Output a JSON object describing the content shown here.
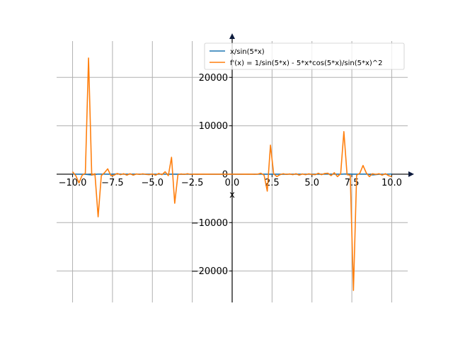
{
  "chart_data": {
    "type": "line",
    "xlabel": "x",
    "ylabel": "",
    "title": "",
    "xlim": [
      -11.0,
      11.0
    ],
    "ylim": [
      -26500,
      27500
    ],
    "grid": true,
    "legend_placement": "top-right",
    "x_ticks": [
      -10.0,
      -7.5,
      -5.0,
      -2.5,
      0.0,
      2.5,
      5.0,
      7.5,
      10.0
    ],
    "x_tick_labels": [
      "−10.0",
      "−7.5",
      "−5.0",
      "−2.5",
      "0.0",
      "2.5",
      "5.0",
      "7.5",
      "10.0"
    ],
    "y_ticks": [
      -20000,
      -10000,
      0,
      10000,
      20000
    ],
    "y_tick_labels": [
      "−20000",
      "−10000",
      "0",
      "10000",
      "20000"
    ],
    "series": [
      {
        "name": "x/sin(5*x)",
        "color": "#1f77b4",
        "x": [
          -10.0,
          -9.6,
          -9.2,
          -8.8,
          -8.4,
          -8.0,
          -7.6,
          -7.2,
          -6.8,
          -6.4,
          -6.0,
          -5.6,
          -5.2,
          -4.8,
          -4.4,
          -4.0,
          -3.6,
          -3.2,
          -2.8,
          -2.4,
          -2.0,
          -1.6,
          -1.2,
          -0.8,
          -0.4,
          0.0,
          0.4,
          0.8,
          1.2,
          1.6,
          2.0,
          2.4,
          2.8,
          3.2,
          3.6,
          4.0,
          4.4,
          4.8,
          5.2,
          5.6,
          6.0,
          6.4,
          6.8,
          7.2,
          7.6,
          8.0,
          8.4,
          8.8,
          9.2,
          9.6,
          10.0
        ],
        "values": [
          38,
          -12,
          -20,
          -150,
          25,
          12,
          -10,
          60,
          -9,
          15,
          8,
          -7,
          6,
          -12,
          5,
          -4,
          4,
          -25,
          3,
          -3,
          2,
          2,
          3,
          1,
          0.5,
          0.2,
          0.5,
          1,
          3,
          2,
          2,
          -3,
          3,
          -25,
          4,
          -4,
          5,
          -12,
          6,
          -7,
          8,
          15,
          -9,
          60,
          -10,
          12,
          25,
          -150,
          -20,
          -12,
          38
        ]
      },
      {
        "name": "f'(x) = 1/sin(5*x) - 5*x*cos(5*x)/sin(5*x)^2",
        "color": "#ff7f0e",
        "x": [
          -10.0,
          -9.8,
          -9.6,
          -9.4,
          -9.2,
          -9.0,
          -8.8,
          -8.6,
          -8.4,
          -8.2,
          -8.0,
          -7.8,
          -7.6,
          -7.4,
          -7.2,
          -7.0,
          -6.8,
          -6.6,
          -6.4,
          -6.2,
          -6.0,
          -5.8,
          -5.6,
          -5.4,
          -5.2,
          -5.0,
          -4.8,
          -4.6,
          -4.4,
          -4.2,
          -4.0,
          -3.8,
          -3.6,
          -3.4,
          -3.2,
          -3.0,
          -2.8,
          -2.6,
          -2.4,
          -2.2,
          -2.0,
          -1.8,
          -1.6,
          -1.4,
          -1.2,
          -1.0,
          -0.8,
          -0.6,
          -0.4,
          -0.2,
          0.0,
          0.2,
          0.4,
          0.6,
          0.8,
          1.0,
          1.2,
          1.4,
          1.6,
          1.8,
          2.0,
          2.2,
          2.4,
          2.6,
          2.8,
          3.0,
          3.2,
          3.4,
          3.6,
          3.8,
          4.0,
          4.2,
          4.4,
          4.6,
          4.8,
          5.0,
          5.2,
          5.4,
          5.6,
          5.8,
          6.0,
          6.2,
          6.4,
          6.6,
          6.8,
          7.0,
          7.2,
          7.4,
          7.6,
          7.8,
          8.0,
          8.2,
          8.4,
          8.6,
          8.8,
          9.0,
          9.2,
          9.4,
          9.6,
          9.8,
          10.0
        ],
        "values": [
          500,
          -300,
          -1800,
          -200,
          200,
          24000,
          -200,
          100,
          -8800,
          -300,
          300,
          1100,
          -300,
          -200,
          150,
          -100,
          100,
          -200,
          100,
          -200,
          50,
          -50,
          80,
          -50,
          -100,
          50,
          -200,
          150,
          -100,
          500,
          -300,
          3500,
          -6000,
          -100,
          50,
          -50,
          100,
          -50,
          20,
          -20,
          10,
          -10,
          20,
          -10,
          0,
          0,
          0,
          0,
          0,
          0,
          0,
          0,
          0,
          0,
          10,
          -10,
          20,
          -20,
          10,
          200,
          -200,
          -3500,
          6000,
          100,
          -500,
          -100,
          100,
          -50,
          50,
          -100,
          100,
          -200,
          50,
          -100,
          80,
          -50,
          -100,
          200,
          -100,
          150,
          200,
          -300,
          300,
          -500,
          100,
          8800,
          -100,
          -200,
          -24000,
          -200,
          200,
          1800,
          300,
          -500,
          100,
          -50,
          100,
          -200,
          100,
          -300,
          -500
        ]
      }
    ]
  }
}
